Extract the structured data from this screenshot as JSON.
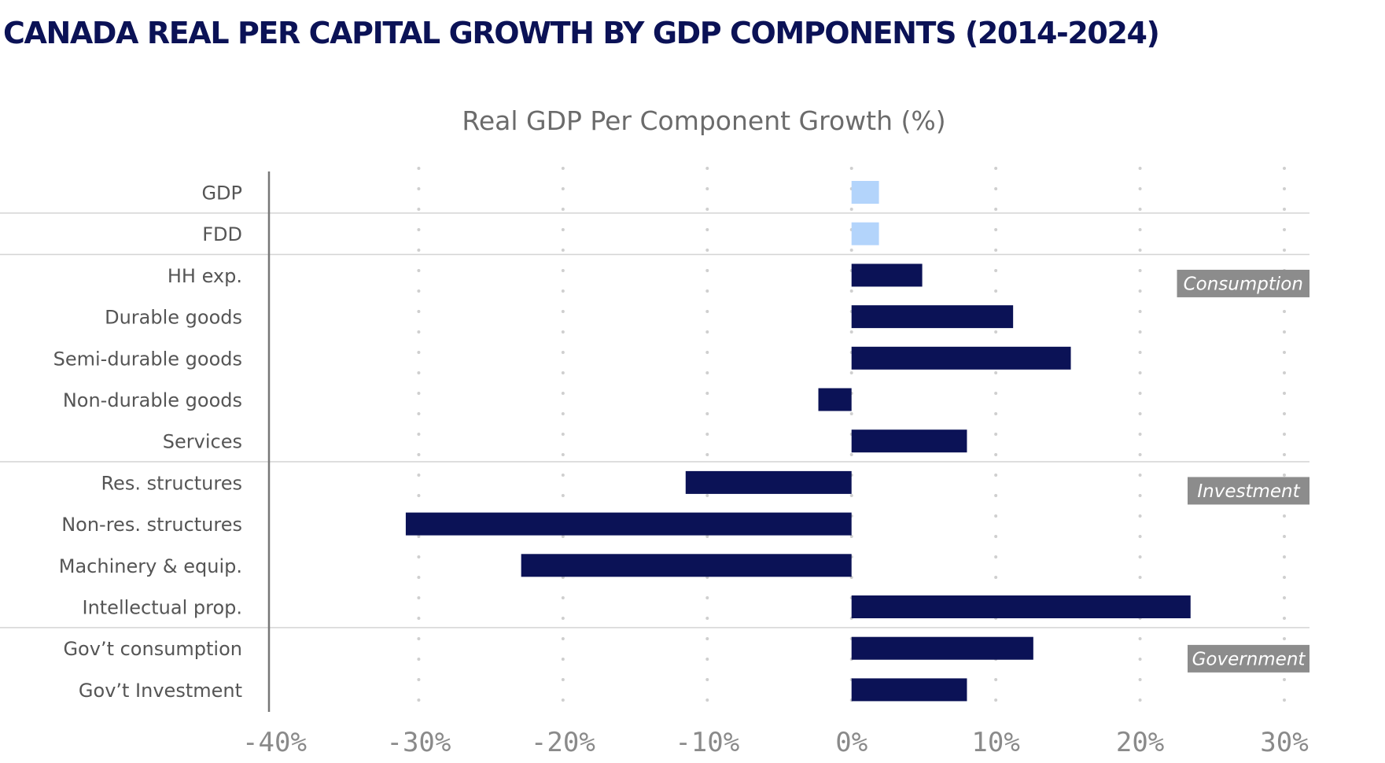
{
  "page_title": "CANADA REAL PER CAPITAL GROWTH BY GDP COMPONENTS (2014-2024)",
  "colors": {
    "title": "#0b1256",
    "bar_dark": "#0b1256",
    "bar_light": "#b3d4fb",
    "group_label_bg": "#8c8c8c",
    "separator": "#d4d4d4",
    "grid": "#cfcfcf"
  },
  "chart_data": {
    "type": "bar",
    "orientation": "horizontal",
    "title": "Real GDP Per Component Growth (%)",
    "xlabel": "",
    "ylabel": "",
    "xlim": [
      -40,
      30
    ],
    "xticks": [
      -40,
      -30,
      -20,
      -10,
      0,
      10,
      20,
      30
    ],
    "xtick_labels": [
      "-40%",
      "-30%",
      "-20%",
      "-10%",
      "0%",
      "10%",
      "20%",
      "30%"
    ],
    "grid": "vertical dotted",
    "categories": [
      "GDP",
      "FDD",
      "HH exp.",
      "Durable goods",
      "Semi-durable goods",
      "Non-durable goods",
      "Services",
      "Res. structures",
      "Non-res. structures",
      "Machinery & equip.",
      "Intellectual prop.",
      "Gov’t consumption",
      "Gov’t Investment"
    ],
    "values": [
      1.9,
      1.9,
      4.9,
      11.2,
      15.2,
      -2.3,
      8.0,
      -11.5,
      -30.9,
      -22.9,
      23.5,
      12.6,
      8.0
    ],
    "highlight": [
      "light",
      "light",
      "dark",
      "dark",
      "dark",
      "dark",
      "dark",
      "dark",
      "dark",
      "dark",
      "dark",
      "dark",
      "dark"
    ],
    "groups": [
      {
        "label": "Consumption",
        "start": 2,
        "end": 6
      },
      {
        "label": "Investment",
        "start": 7,
        "end": 10
      },
      {
        "label": "Government",
        "start": 11,
        "end": 12
      }
    ]
  }
}
